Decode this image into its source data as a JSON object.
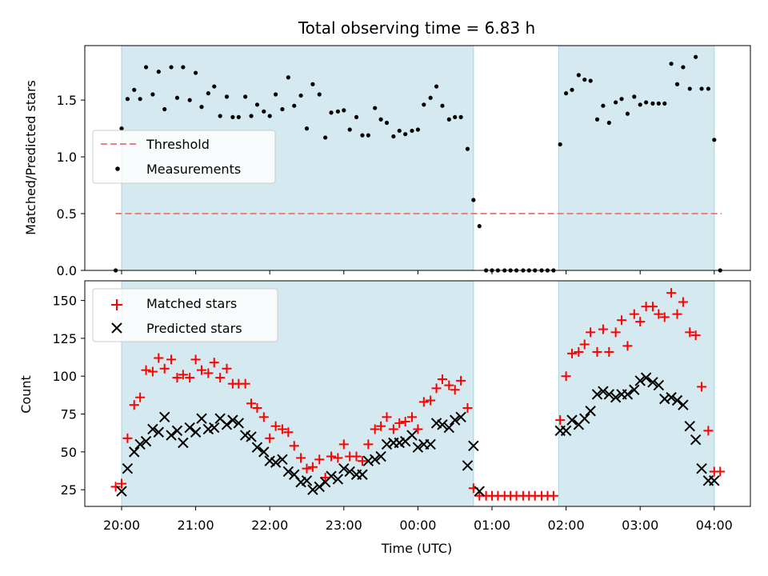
{
  "chart_data": [
    {
      "type": "scatter",
      "title": "Total observing time = 6.83 h",
      "xlabel": "",
      "ylabel": "Matched/Predicted stars",
      "ylim": [
        0,
        1.98
      ],
      "yticks": [
        0.0,
        0.5,
        1.0,
        1.5
      ],
      "ytick_labels": [
        "0.0",
        "0.5",
        "1.0",
        "1.5"
      ],
      "x_unit": "hours since 20:00 UTC",
      "observing_windows": [
        [
          0,
          4.75
        ],
        [
          5.9,
          8.0
        ]
      ],
      "window_color": "#d4eaf0",
      "threshold": {
        "name": "Threshold",
        "value": 0.5,
        "x_range": [
          -0.08,
          8.1
        ],
        "color": "#f08080",
        "style": "dashed"
      },
      "legend": {
        "placement": "center-left",
        "entries": [
          "Threshold",
          "Measurements"
        ]
      },
      "series": [
        {
          "name": "Measurements",
          "marker": "dot",
          "color": "#000000",
          "x": [
            -0.08,
            0.0,
            0.08,
            0.17,
            0.25,
            0.33,
            0.42,
            0.5,
            0.58,
            0.67,
            0.75,
            0.83,
            0.92,
            1.0,
            1.08,
            1.17,
            1.25,
            1.33,
            1.42,
            1.5,
            1.58,
            1.67,
            1.75,
            1.83,
            1.92,
            2.0,
            2.08,
            2.17,
            2.25,
            2.33,
            2.42,
            2.5,
            2.58,
            2.67,
            2.75,
            2.83,
            2.92,
            3.0,
            3.08,
            3.17,
            3.25,
            3.33,
            3.42,
            3.5,
            3.58,
            3.67,
            3.75,
            3.83,
            3.92,
            4.0,
            4.08,
            4.17,
            4.25,
            4.33,
            4.42,
            4.5,
            4.58,
            4.67,
            4.75,
            4.83,
            4.92,
            5.0,
            5.08,
            5.17,
            5.25,
            5.33,
            5.42,
            5.5,
            5.58,
            5.67,
            5.75,
            5.83,
            5.92,
            6.0,
            6.08,
            6.17,
            6.25,
            6.33,
            6.42,
            6.5,
            6.58,
            6.67,
            6.75,
            6.83,
            6.92,
            7.0,
            7.08,
            7.17,
            7.25,
            7.33,
            7.42,
            7.5,
            7.58,
            7.67,
            7.75,
            7.83,
            7.92,
            8.0,
            8.08
          ],
          "y": [
            0.0,
            1.25,
            1.51,
            1.59,
            1.51,
            1.79,
            1.55,
            1.75,
            1.42,
            1.79,
            1.52,
            1.79,
            1.5,
            1.74,
            1.44,
            1.56,
            1.62,
            1.36,
            1.53,
            1.35,
            1.35,
            1.53,
            1.36,
            1.46,
            1.4,
            1.36,
            1.55,
            1.42,
            1.7,
            1.45,
            1.54,
            1.25,
            1.64,
            1.55,
            1.17,
            1.39,
            1.4,
            1.41,
            1.24,
            1.35,
            1.19,
            1.19,
            1.43,
            1.33,
            1.3,
            1.18,
            1.23,
            1.2,
            1.23,
            1.24,
            1.46,
            1.52,
            1.62,
            1.45,
            1.33,
            1.35,
            1.35,
            1.07,
            0.62,
            0.39,
            0.0,
            0.0,
            0.0,
            0.0,
            0.0,
            0.0,
            0.0,
            0.0,
            0.0,
            0.0,
            0.0,
            0.0,
            1.11,
            1.56,
            1.59,
            1.72,
            1.68,
            1.67,
            1.33,
            1.45,
            1.3,
            1.48,
            1.51,
            1.38,
            1.53,
            1.46,
            1.48,
            1.47,
            1.47,
            1.47,
            1.82,
            1.64,
            1.79,
            1.6,
            1.88,
            1.6,
            1.6,
            1.15,
            0.0
          ]
        }
      ]
    },
    {
      "type": "scatter",
      "title": "",
      "xlabel": "Time (UTC)",
      "ylabel": "Count",
      "ylim": [
        14,
        163
      ],
      "yticks": [
        25,
        50,
        75,
        100,
        125,
        150
      ],
      "ytick_labels": [
        "25",
        "50",
        "75",
        "100",
        "125",
        "150"
      ],
      "xlim": [
        -0.5,
        8.5
      ],
      "xticks": [
        0,
        1,
        2,
        3,
        4,
        5,
        6,
        7,
        8
      ],
      "xtick_labels": [
        "20:00",
        "21:00",
        "22:00",
        "23:00",
        "00:00",
        "01:00",
        "02:00",
        "03:00",
        "04:00"
      ],
      "x_unit": "hours since 20:00 UTC",
      "observing_windows": [
        [
          0,
          4.75
        ],
        [
          5.9,
          8.0
        ]
      ],
      "window_color": "#d4eaf0",
      "legend": {
        "placement": "top-left",
        "entries": [
          "Matched stars",
          "Predicted stars"
        ]
      },
      "series": [
        {
          "name": "Matched stars",
          "marker": "plus",
          "color": "#ff0000",
          "x": [
            -0.08,
            0.0,
            0.08,
            0.17,
            0.25,
            0.33,
            0.42,
            0.5,
            0.58,
            0.67,
            0.75,
            0.83,
            0.92,
            1.0,
            1.08,
            1.17,
            1.25,
            1.33,
            1.42,
            1.5,
            1.58,
            1.67,
            1.75,
            1.83,
            1.92,
            2.0,
            2.08,
            2.17,
            2.25,
            2.33,
            2.42,
            2.5,
            2.58,
            2.67,
            2.75,
            2.83,
            2.92,
            3.0,
            3.08,
            3.17,
            3.25,
            3.33,
            3.42,
            3.5,
            3.58,
            3.67,
            3.75,
            3.83,
            3.92,
            4.0,
            4.08,
            4.17,
            4.25,
            4.33,
            4.42,
            4.5,
            4.58,
            4.67,
            4.75,
            4.83,
            4.92,
            5.0,
            5.08,
            5.17,
            5.25,
            5.33,
            5.42,
            5.5,
            5.58,
            5.67,
            5.75,
            5.83,
            5.92,
            6.0,
            6.08,
            6.17,
            6.25,
            6.33,
            6.42,
            6.5,
            6.58,
            6.67,
            6.75,
            6.83,
            6.92,
            7.0,
            7.08,
            7.17,
            7.25,
            7.33,
            7.42,
            7.5,
            7.58,
            7.67,
            7.75,
            7.83,
            7.92,
            8.0,
            8.08
          ],
          "y": [
            27,
            29,
            59,
            81,
            86,
            104,
            103,
            112,
            105,
            111,
            99,
            101,
            99,
            111,
            104,
            102,
            109,
            99,
            105,
            95,
            95,
            95,
            82,
            79,
            73,
            59,
            67,
            65,
            63,
            54,
            46,
            39,
            40,
            45,
            33,
            47,
            46,
            55,
            47,
            47,
            44,
            55,
            65,
            67,
            73,
            65,
            69,
            70,
            73,
            65,
            83,
            84,
            92,
            98,
            94,
            91,
            97,
            79,
            26,
            21,
            21,
            21,
            21,
            21,
            21,
            21,
            21,
            21,
            21,
            21,
            21,
            21,
            71,
            100,
            115,
            116,
            121,
            129,
            116,
            131,
            116,
            129,
            137,
            120,
            141,
            136,
            146,
            146,
            141,
            139,
            155,
            141,
            149,
            129,
            127,
            93,
            64,
            37,
            37
          ]
        },
        {
          "name": "Predicted stars",
          "marker": "x",
          "color": "#000000",
          "x": [
            0.0,
            0.08,
            0.17,
            0.25,
            0.33,
            0.42,
            0.5,
            0.58,
            0.67,
            0.75,
            0.83,
            0.92,
            1.0,
            1.08,
            1.17,
            1.25,
            1.33,
            1.42,
            1.5,
            1.58,
            1.67,
            1.75,
            1.83,
            1.92,
            2.0,
            2.08,
            2.17,
            2.25,
            2.33,
            2.42,
            2.5,
            2.58,
            2.67,
            2.75,
            2.83,
            2.92,
            3.0,
            3.08,
            3.17,
            3.25,
            3.33,
            3.42,
            3.5,
            3.58,
            3.67,
            3.75,
            3.83,
            3.92,
            4.0,
            4.08,
            4.17,
            4.25,
            4.33,
            4.42,
            4.5,
            4.58,
            4.67,
            4.75,
            4.83,
            5.92,
            6.0,
            6.08,
            6.17,
            6.25,
            6.33,
            6.42,
            6.5,
            6.58,
            6.67,
            6.75,
            6.83,
            6.92,
            7.0,
            7.08,
            7.17,
            7.25,
            7.33,
            7.42,
            7.5,
            7.58,
            7.67,
            7.75,
            7.83,
            7.92,
            8.0
          ],
          "y": [
            24,
            39,
            50,
            55,
            57,
            65,
            63,
            73,
            61,
            64,
            56,
            66,
            63,
            72,
            65,
            66,
            72,
            68,
            71,
            69,
            61,
            60,
            53,
            50,
            44,
            43,
            45,
            37,
            35,
            30,
            31,
            25,
            27,
            30,
            34,
            32,
            39,
            37,
            35,
            35,
            44,
            45,
            47,
            55,
            56,
            56,
            57,
            61,
            53,
            55,
            55,
            69,
            68,
            66,
            71,
            73,
            41,
            54,
            24,
            64,
            64,
            71,
            68,
            72,
            77,
            88,
            90,
            88,
            86,
            88,
            88,
            91,
            97,
            99,
            96,
            94,
            85,
            86,
            84,
            81,
            67,
            58,
            39,
            31,
            31
          ]
        }
      ]
    }
  ]
}
